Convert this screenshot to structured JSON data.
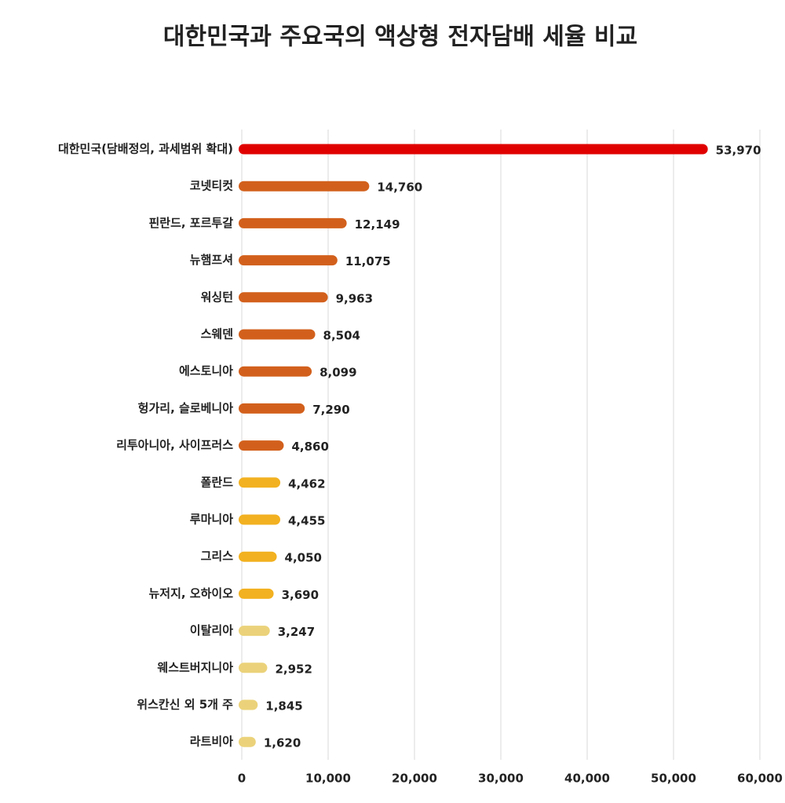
{
  "chart_data": {
    "type": "hbar",
    "title": "대한민국과 주요국의 액상형 전자담배 세율 비교",
    "categories": [
      "대한민국(담배정의, 과세범위 확대)",
      "코넷티컷",
      "핀란드, 포르투갈",
      "뉴햄프셔",
      "워싱턴",
      "스웨덴",
      "에스토니아",
      "헝가리, 슬로베니아",
      "리투아니아, 사이프러스",
      "폴란드",
      "루마니아",
      "그리스",
      "뉴저지, 오하이오",
      "이탈리아",
      "웨스트버지니아",
      "위스칸신 외 5개 주",
      "라트비아"
    ],
    "values": [
      53970,
      14760,
      12149,
      11075,
      9963,
      8504,
      8099,
      7290,
      4860,
      4462,
      4455,
      4050,
      3690,
      3247,
      2952,
      1845,
      1620
    ],
    "value_labels": [
      "53,970",
      "14,760",
      "12,149",
      "11,075",
      "9,963",
      "8,504",
      "8,099",
      "7,290",
      "4,860",
      "4,462",
      "4,455",
      "4,050",
      "3,690",
      "3,247",
      "2,952",
      "1,845",
      "1,620"
    ],
    "colors": [
      "#e00000",
      "#d2601c",
      "#d2601c",
      "#d2601c",
      "#d2601c",
      "#d2601c",
      "#d2601c",
      "#d2601c",
      "#d2601c",
      "#f2b120",
      "#f2b120",
      "#f2b120",
      "#f2b120",
      "#ebd27a",
      "#ebd27a",
      "#ebd27a",
      "#ebd27a"
    ],
    "xlim": [
      0,
      60000
    ],
    "xticks": [
      0,
      {
        "value": 10000,
        "label": "10,000"
      },
      {
        "value": 20000,
        "label": "20,000"
      },
      {
        "value": 30000,
        "label": "30,000"
      },
      {
        "value": 40000,
        "label": "40,000"
      },
      {
        "value": 50000,
        "label": "50,000"
      },
      {
        "value": 60000,
        "label": "60,000"
      }
    ],
    "grid": true
  }
}
